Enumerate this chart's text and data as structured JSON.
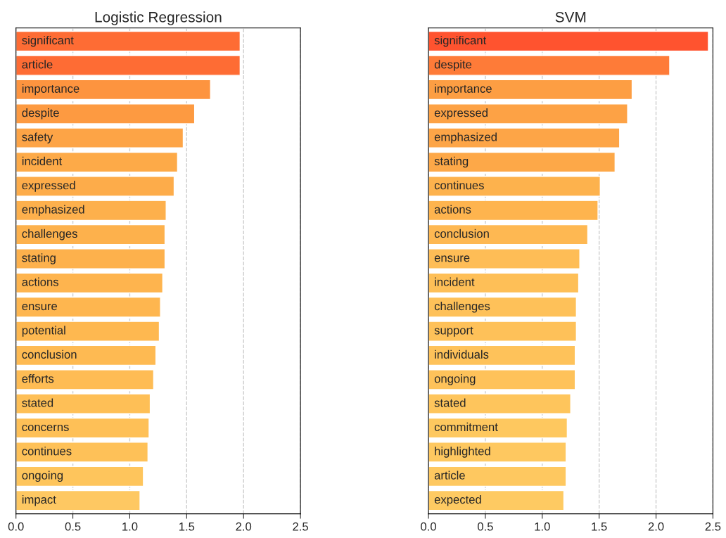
{
  "chart_data": [
    {
      "type": "bar",
      "orientation": "horizontal",
      "title": "Logistic Regression",
      "tick_labels": "x",
      "grid": "x",
      "xlim": [
        0,
        2.5
      ],
      "xticks": [
        {
          "value": 0,
          "label": "0.0"
        },
        0.5,
        {
          "value": 1,
          "label": "1.0"
        },
        1.5,
        {
          "value": 2,
          "label": "2.0"
        },
        2.5
      ],
      "categories": [
        "significant",
        "article",
        "importance",
        "despite",
        "safety",
        "incident",
        "expressed",
        "emphasized",
        "challenges",
        "stating",
        "actions",
        "ensure",
        "potential",
        "conclusion",
        "efforts",
        "stated",
        "concerns",
        "continues",
        "ongoing",
        "impact"
      ],
      "values": [
        1.97,
        1.97,
        1.71,
        1.57,
        1.47,
        1.42,
        1.39,
        1.32,
        1.31,
        1.31,
        1.29,
        1.27,
        1.26,
        1.23,
        1.21,
        1.18,
        1.17,
        1.16,
        1.12,
        1.09
      ],
      "colors": [
        "#fe6c34",
        "#fe6c34",
        "#fd943f",
        "#fd9a41",
        "#fda446",
        "#fdaa48",
        "#fdac4a",
        "#fdb04c",
        "#fdb14c",
        "#fdb14c",
        "#feb44e",
        "#feb64f",
        "#feb850",
        "#feba52",
        "#febc54",
        "#febf56",
        "#fec057",
        "#fec158",
        "#fec55c",
        "#fec862"
      ]
    },
    {
      "type": "bar",
      "orientation": "horizontal",
      "title": "SVM",
      "tick_labels": "x",
      "grid": "x",
      "xlim": [
        0,
        2.5
      ],
      "xticks": [
        {
          "value": 0,
          "label": "0.0"
        },
        0.5,
        {
          "value": 1,
          "label": "1.0"
        },
        1.5,
        {
          "value": 2,
          "label": "2.0"
        },
        2.5
      ],
      "categories": [
        "significant",
        "despite",
        "importance",
        "expressed",
        "emphasized",
        "stating",
        "continues",
        "actions",
        "conclusion",
        "ensure",
        "incident",
        "challenges",
        "support",
        "individuals",
        "ongoing",
        "stated",
        "commitment",
        "highlighted",
        "article",
        "expected"
      ],
      "values": [
        2.46,
        2.12,
        1.79,
        1.75,
        1.68,
        1.64,
        1.51,
        1.49,
        1.4,
        1.33,
        1.32,
        1.3,
        1.3,
        1.29,
        1.29,
        1.25,
        1.22,
        1.21,
        1.21,
        1.19
      ],
      "colors": [
        "#ff532f",
        "#fe7b38",
        "#fd9e43",
        "#fda245",
        "#fda547",
        "#fda848",
        "#fdb24d",
        "#feb44e",
        "#feb852",
        "#febd56",
        "#febf57",
        "#fec159",
        "#fec159",
        "#fec25a",
        "#fec25a",
        "#fec55c",
        "#fec85f",
        "#fec860",
        "#fec860",
        "#feca62"
      ]
    }
  ]
}
